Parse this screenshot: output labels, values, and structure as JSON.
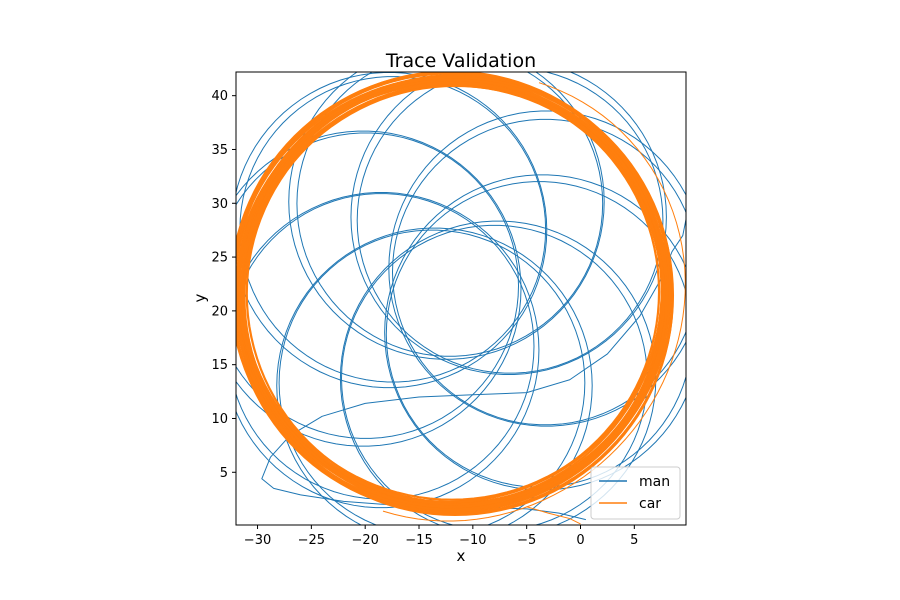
{
  "colors": {
    "man": "#1f77b4",
    "car": "#ff7f0e",
    "axes": "#000000",
    "background": "#ffffff"
  },
  "chart_data": {
    "type": "line",
    "title": "Trace Validation",
    "xlabel": "x",
    "ylabel": "y",
    "xlim": [
      -32.0,
      9.8
    ],
    "ylim": [
      0.1,
      42.2
    ],
    "xticks": [
      -30,
      -25,
      -20,
      -15,
      -10,
      -5,
      0,
      5
    ],
    "yticks": [
      5,
      10,
      15,
      20,
      25,
      30,
      35,
      40
    ],
    "xtick_labels": [
      "−30",
      "−25",
      "−20",
      "−15",
      "−10",
      "−5",
      "0",
      "5"
    ],
    "ytick_labels": [
      "5",
      "10",
      "15",
      "20",
      "25",
      "30",
      "35",
      "40"
    ],
    "grid": false,
    "legend_position": "lower-right",
    "series": [
      {
        "name": "man",
        "color": "#1f77b4",
        "description": "rosette of circles (radius ~14) whose centres orbit (-11.5, 21.5) at distance ~8.5, plus an approach path from the lower left",
        "orbit_center": [
          -11.5,
          21.5
        ],
        "orbit_radius": 8.5,
        "circle_radius": 14.2,
        "circle_count": 9,
        "approach_path": [
          [
            0.5,
            0.6
          ],
          [
            -2,
            1.2
          ],
          [
            -5,
            1.6
          ],
          [
            -8,
            1.7
          ],
          [
            -12,
            1.8
          ],
          [
            -15,
            1.9
          ],
          [
            -18,
            2.0
          ],
          [
            -22,
            2.3
          ],
          [
            -26,
            2.9
          ],
          [
            -28.5,
            3.5
          ],
          [
            -29.6,
            4.4
          ],
          [
            -28.8,
            6.4
          ],
          [
            -27,
            8.4
          ],
          [
            -24,
            10.2
          ],
          [
            -20,
            11.4
          ],
          [
            -15,
            12.0
          ],
          [
            -10,
            12.2
          ],
          [
            -5,
            12.4
          ],
          [
            -1,
            13.6
          ],
          [
            2.5,
            16.0
          ],
          [
            5.5,
            19.5
          ],
          [
            7.5,
            23.0
          ],
          [
            8.5,
            25.5
          ],
          [
            9.5,
            27.0
          ],
          [
            9.8,
            28.5
          ]
        ]
      },
      {
        "name": "car",
        "color": "#ff7f0e",
        "description": "thick bundle of near-circular loops centred near (-12, 21.5), radius ~20",
        "circle_center": [
          -11.9,
          21.6
        ],
        "circle_radius": 19.9,
        "loop_count": 22,
        "tail_path": [
          [
            -5,
            1.8
          ],
          [
            -3,
            1.2
          ],
          [
            -1,
            0.7
          ],
          [
            0,
            0.2
          ]
        ]
      }
    ]
  }
}
